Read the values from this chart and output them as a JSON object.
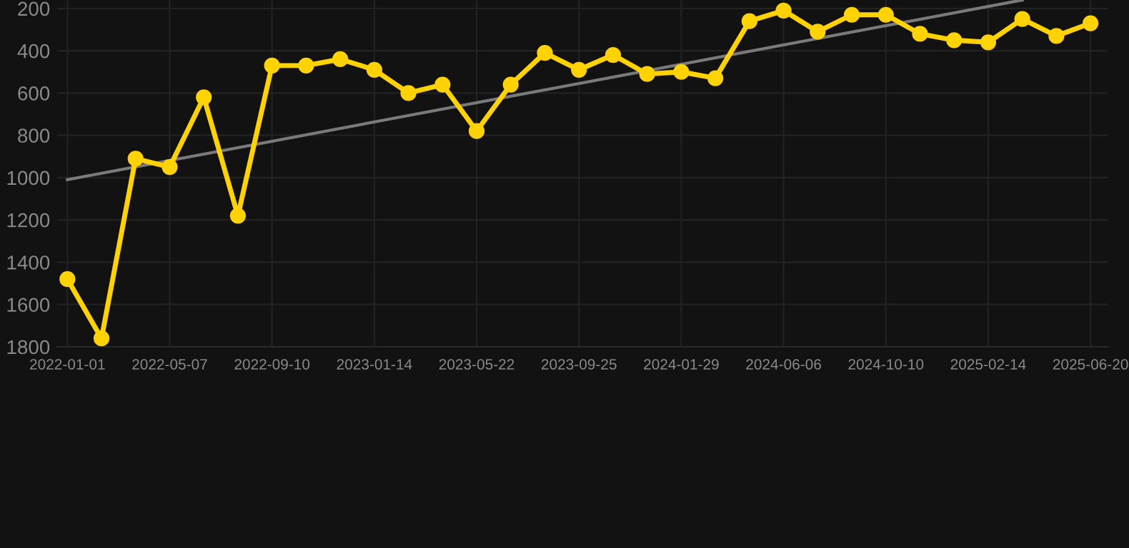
{
  "chart_data": {
    "type": "line",
    "categories": [
      "2022-01-01",
      null,
      null,
      "2022-05-07",
      null,
      null,
      "2022-09-10",
      null,
      null,
      "2023-01-14",
      null,
      null,
      "2023-05-22",
      null,
      null,
      "2023-09-25",
      null,
      null,
      "2024-01-29",
      null,
      null,
      "2024-06-06",
      null,
      null,
      "2024-10-10",
      null,
      null,
      "2025-02-14",
      null,
      null,
      "2025-06-20"
    ],
    "series": [
      {
        "color": "#ffd200",
        "marker": "circle",
        "values": [
          1480,
          1760,
          910,
          950,
          620,
          1180,
          470,
          470,
          440,
          490,
          600,
          560,
          780,
          560,
          410,
          490,
          420,
          510,
          500,
          530,
          260,
          210,
          310,
          230,
          230,
          320,
          350,
          360,
          250,
          330,
          270
        ]
      },
      {
        "color": "#7a7a7a",
        "marker": "none",
        "values": [
          1010,
          null,
          null,
          null,
          null,
          null,
          null,
          null,
          null,
          null,
          null,
          null,
          null,
          null,
          null,
          null,
          null,
          null,
          null,
          null,
          null,
          null,
          null,
          null,
          null,
          null,
          null,
          null,
          160,
          null,
          null
        ]
      }
    ],
    "ylim": [
      1800,
      160
    ],
    "yticks": [
      200,
      400,
      600,
      800,
      1000,
      1200,
      1400,
      1600,
      1800
    ],
    "grid": true
  }
}
